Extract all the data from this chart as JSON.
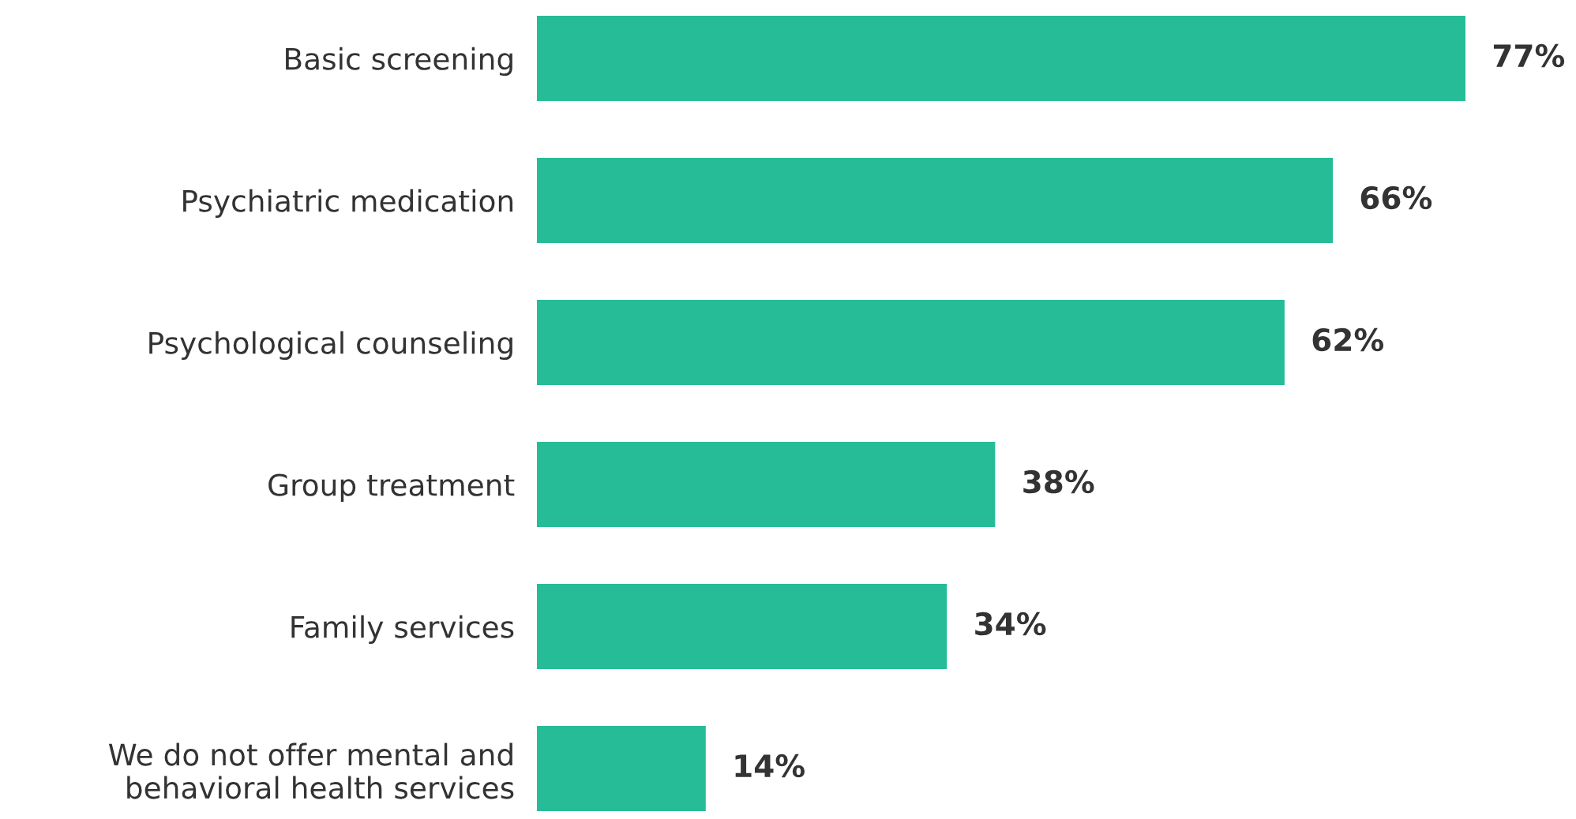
{
  "chart_data": {
    "type": "bar",
    "orientation": "horizontal",
    "categories": [
      "Basic screening",
      "Psychiatric medication",
      "Psychological counseling",
      "Group treatment",
      "Family services",
      "We do not offer mental and\nbehavioral health services"
    ],
    "values": [
      77,
      66,
      62,
      38,
      34,
      14
    ],
    "value_labels": [
      "77%",
      "66%",
      "62%",
      "38%",
      "34%",
      "14%"
    ],
    "color": "#27bc98",
    "grid": false,
    "legend": false
  }
}
